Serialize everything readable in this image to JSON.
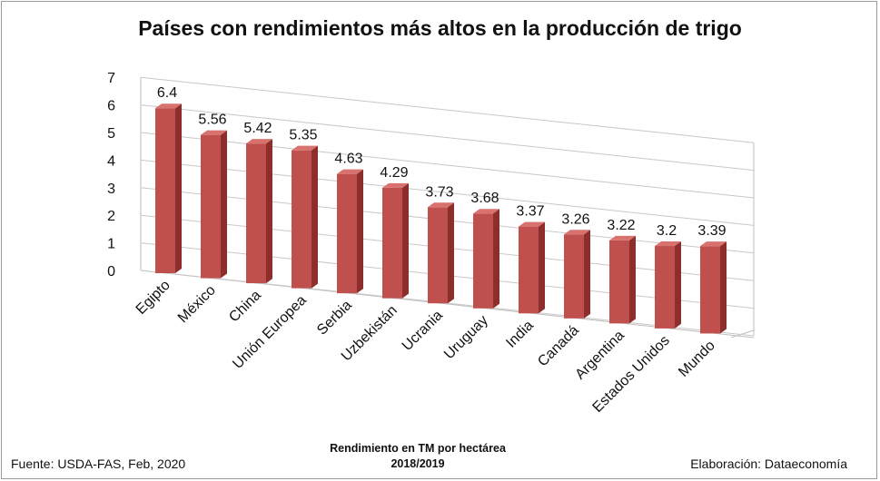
{
  "chart_data": {
    "type": "bar",
    "title": "Países con rendimientos más altos en la producción de trigo",
    "xlabel": "",
    "ylabel": "",
    "ylim": [
      0,
      7
    ],
    "yticks": [
      0,
      1,
      2,
      3,
      4,
      5,
      6,
      7
    ],
    "grid": true,
    "style": "3d-column",
    "bar_color": "#c0504d",
    "categories": [
      "Egipto",
      "México",
      "China",
      "Unión Europea",
      "Serbia",
      "Uzbekistán",
      "Ucrania",
      "Uruguay",
      "India",
      "Canadá",
      "Argentina",
      "Estados Unidos",
      "Mundo"
    ],
    "values": [
      6.4,
      5.56,
      5.42,
      5.35,
      4.63,
      4.29,
      3.73,
      3.68,
      3.37,
      3.26,
      3.22,
      3.2,
      3.39
    ],
    "data_labels": [
      "6.4",
      "5.56",
      "5.42",
      "5.35",
      "4.63",
      "4.29",
      "3.73",
      "3.68",
      "3.37",
      "3.26",
      "3.22",
      "3.2",
      "3.39"
    ]
  },
  "footer": {
    "source": "Fuente:  USDA-FAS, Feb, 2020",
    "center_line1": "Rendimiento en TM por hectárea",
    "center_line2": "2018/2019",
    "credit": "Elaboración: Dataeconomía"
  }
}
